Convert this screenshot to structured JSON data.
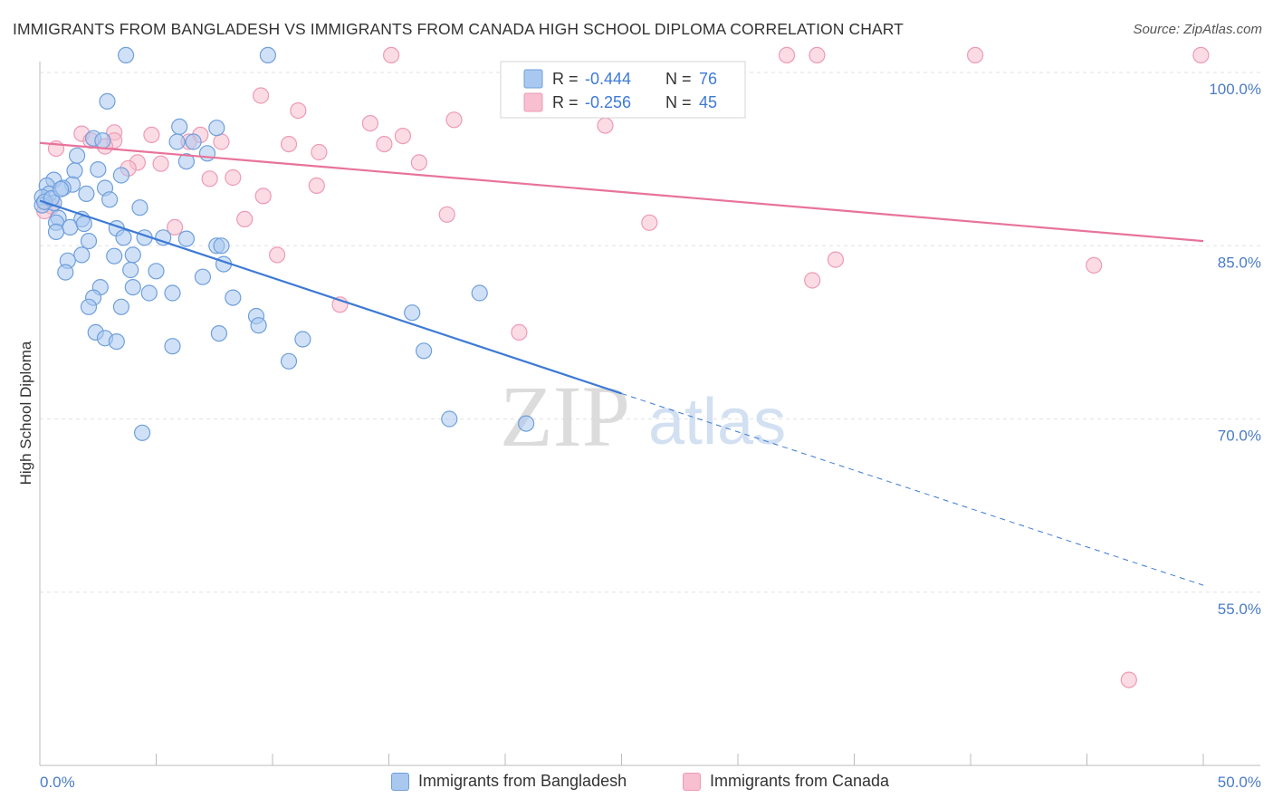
{
  "title": "IMMIGRANTS FROM BANGLADESH VS IMMIGRANTS FROM CANADA HIGH SCHOOL DIPLOMA CORRELATION CHART",
  "source": "Source: ZipAtlas.com",
  "watermark": {
    "zip": "ZIP",
    "atlas": "atlas"
  },
  "colors": {
    "blue_fill": "#a9c8f0",
    "blue_stroke": "#6f9fdc",
    "blue_line": "#3d7ad6",
    "pink_fill": "#f7bfd0",
    "pink_stroke": "#ee9ab5",
    "pink_line": "#e8739b",
    "axis_label": "#4a7cc7",
    "grid": "#e2e2e2"
  },
  "legend": {
    "rows": [
      {
        "r_label": "R =",
        "r_value": "-0.444",
        "n_label": "N =",
        "n_value": "76"
      },
      {
        "r_label": "R =",
        "r_value": "-0.256",
        "n_label": "N =",
        "n_value": "45"
      }
    ]
  },
  "chart_data": {
    "type": "scatter",
    "title": "IMMIGRANTS FROM BANGLADESH VS IMMIGRANTS FROM CANADA HIGH SCHOOL DIPLOMA CORRELATION CHART",
    "xlabel": "",
    "ylabel": "High School Diploma",
    "xlim": [
      0,
      50
    ],
    "ylim": [
      41,
      102.5
    ],
    "x_tick_labels": [
      "0.0%",
      "50.0%"
    ],
    "y_ticks": [
      100,
      85,
      70,
      55
    ],
    "y_tick_labels": [
      "100.0%",
      "85.0%",
      "70.0%",
      "55.0%"
    ],
    "grid": true,
    "legend_position": "top-center",
    "series": [
      {
        "name": "Immigrants from Bangladesh",
        "r": -0.444,
        "n": 76,
        "trend": {
          "x0": 0,
          "y0": 88.9,
          "x1": 25,
          "y1": 72.2,
          "dashed_to_x": 50,
          "dashed_to_y": 55.6
        },
        "points": [
          [
            3.7,
            101.5
          ],
          [
            9.8,
            101.5
          ],
          [
            2.9,
            97.5
          ],
          [
            6.0,
            95.3
          ],
          [
            7.6,
            95.2
          ],
          [
            2.3,
            94.3
          ],
          [
            5.9,
            94.0
          ],
          [
            6.6,
            94.0
          ],
          [
            2.7,
            94.1
          ],
          [
            7.2,
            93.0
          ],
          [
            6.3,
            92.3
          ],
          [
            1.6,
            92.8
          ],
          [
            1.5,
            91.5
          ],
          [
            3.5,
            91.1
          ],
          [
            0.6,
            90.7
          ],
          [
            1.4,
            90.3
          ],
          [
            0.3,
            90.2
          ],
          [
            1.0,
            90.0
          ],
          [
            2.8,
            90.0
          ],
          [
            0.4,
            89.5
          ],
          [
            2.0,
            89.5
          ],
          [
            0.1,
            89.2
          ],
          [
            3.0,
            89.0
          ],
          [
            0.6,
            88.7
          ],
          [
            0.1,
            88.5
          ],
          [
            4.3,
            88.3
          ],
          [
            0.8,
            87.4
          ],
          [
            1.8,
            87.3
          ],
          [
            0.7,
            87.0
          ],
          [
            1.3,
            86.6
          ],
          [
            3.3,
            86.5
          ],
          [
            0.7,
            86.2
          ],
          [
            3.6,
            85.7
          ],
          [
            4.5,
            85.7
          ],
          [
            5.3,
            85.7
          ],
          [
            6.3,
            85.6
          ],
          [
            2.1,
            85.4
          ],
          [
            7.6,
            85.0
          ],
          [
            7.8,
            85.0
          ],
          [
            1.8,
            84.2
          ],
          [
            3.2,
            84.1
          ],
          [
            4.0,
            84.2
          ],
          [
            1.2,
            83.7
          ],
          [
            7.9,
            83.4
          ],
          [
            3.9,
            82.9
          ],
          [
            5.0,
            82.8
          ],
          [
            1.1,
            82.7
          ],
          [
            7.0,
            82.3
          ],
          [
            4.0,
            81.4
          ],
          [
            2.6,
            81.4
          ],
          [
            4.7,
            80.9
          ],
          [
            5.7,
            80.9
          ],
          [
            2.3,
            80.5
          ],
          [
            8.3,
            80.5
          ],
          [
            2.1,
            79.7
          ],
          [
            3.5,
            79.7
          ],
          [
            18.9,
            80.9
          ],
          [
            16.0,
            79.2
          ],
          [
            9.3,
            78.9
          ],
          [
            9.4,
            78.1
          ],
          [
            2.4,
            77.5
          ],
          [
            7.7,
            77.4
          ],
          [
            2.8,
            77.0
          ],
          [
            11.3,
            76.9
          ],
          [
            3.3,
            76.7
          ],
          [
            5.7,
            76.3
          ],
          [
            16.5,
            75.9
          ],
          [
            10.7,
            75.0
          ],
          [
            17.6,
            70.0
          ],
          [
            20.9,
            69.6
          ],
          [
            4.4,
            68.8
          ],
          [
            0.2,
            88.8
          ],
          [
            0.5,
            89.1
          ],
          [
            2.5,
            91.6
          ],
          [
            1.9,
            86.9
          ],
          [
            0.9,
            89.9
          ]
        ]
      },
      {
        "name": "Immigrants from Canada",
        "r": -0.256,
        "n": 45,
        "trend": {
          "x0": 0,
          "y0": 93.9,
          "x1": 50,
          "y1": 85.4
        },
        "points": [
          [
            15.1,
            101.5
          ],
          [
            32.1,
            101.5
          ],
          [
            33.4,
            101.5
          ],
          [
            40.2,
            101.5
          ],
          [
            49.9,
            101.5
          ],
          [
            9.5,
            98.0
          ],
          [
            11.1,
            96.7
          ],
          [
            17.8,
            95.9
          ],
          [
            14.2,
            95.6
          ],
          [
            24.3,
            95.4
          ],
          [
            3.2,
            94.8
          ],
          [
            1.8,
            94.7
          ],
          [
            4.8,
            94.6
          ],
          [
            6.9,
            94.6
          ],
          [
            15.6,
            94.5
          ],
          [
            2.2,
            94.1
          ],
          [
            3.2,
            94.1
          ],
          [
            6.4,
            94.0
          ],
          [
            7.8,
            94.0
          ],
          [
            10.7,
            93.8
          ],
          [
            14.8,
            93.8
          ],
          [
            0.7,
            93.4
          ],
          [
            2.8,
            93.6
          ],
          [
            12.0,
            93.1
          ],
          [
            4.2,
            92.2
          ],
          [
            16.3,
            92.2
          ],
          [
            5.2,
            92.1
          ],
          [
            3.8,
            91.7
          ],
          [
            8.3,
            90.9
          ],
          [
            7.3,
            90.8
          ],
          [
            11.9,
            90.2
          ],
          [
            9.6,
            89.3
          ],
          [
            0.5,
            88.4
          ],
          [
            17.5,
            87.7
          ],
          [
            8.8,
            87.3
          ],
          [
            26.2,
            87.0
          ],
          [
            5.8,
            86.6
          ],
          [
            10.2,
            84.2
          ],
          [
            34.2,
            83.8
          ],
          [
            45.3,
            83.3
          ],
          [
            33.2,
            82.0
          ],
          [
            12.9,
            79.9
          ],
          [
            20.6,
            77.5
          ],
          [
            46.8,
            47.4
          ],
          [
            0.2,
            88.0
          ]
        ]
      }
    ]
  }
}
